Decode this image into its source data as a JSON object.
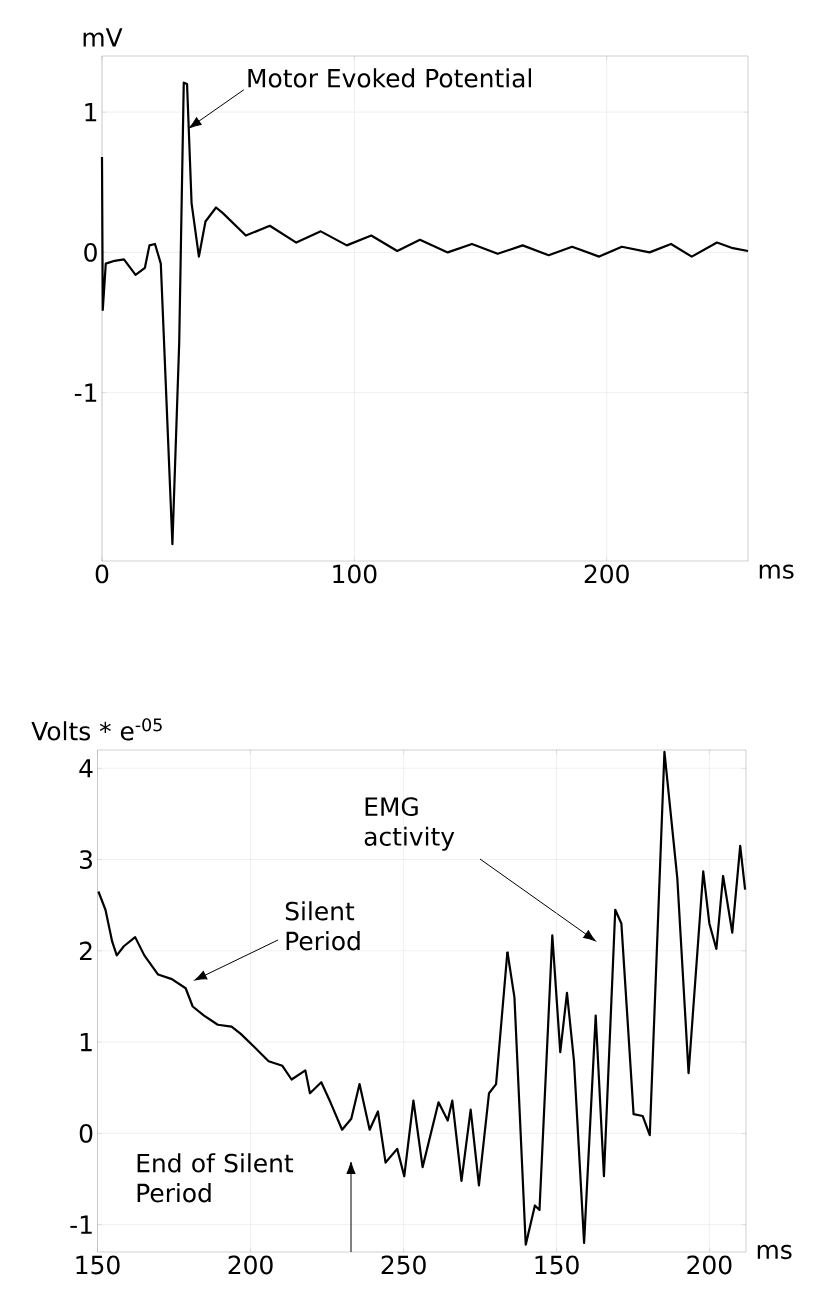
{
  "chart_data": [
    {
      "type": "line",
      "xlabel": "ms",
      "ylabel": "mV",
      "color": "#000000",
      "grid": true,
      "xlim": [
        0,
        256
      ],
      "ylim": [
        -2.2,
        1.4
      ],
      "xticks": [
        0,
        100,
        200
      ],
      "yticks": [
        -1,
        0,
        1
      ],
      "x": [
        0,
        0.3,
        1.5,
        5,
        8.7,
        13.3,
        17,
        18.8,
        21,
        23.3,
        27.9,
        30.6,
        32.4,
        33.7,
        35.5,
        38.4,
        41,
        45.2,
        47.9,
        57,
        66.5,
        77,
        86.7,
        97,
        106.7,
        117,
        126,
        137,
        146.6,
        156.8,
        166.7,
        177,
        186.3,
        197,
        206,
        217,
        225.5,
        233.7,
        243.7,
        250,
        256
      ],
      "values": [
        0.68,
        -0.41,
        -0.08,
        -0.06,
        -0.05,
        -0.16,
        -0.11,
        0.05,
        0.06,
        -0.08,
        -2.08,
        -0.64,
        1.21,
        1.2,
        0.35,
        -0.03,
        0.22,
        0.32,
        0.28,
        0.12,
        0.19,
        0.07,
        0.15,
        0.05,
        0.12,
        0.01,
        0.09,
        0,
        0.06,
        -0.01,
        0.05,
        -0.02,
        0.04,
        -0.03,
        0.04,
        0,
        0.06,
        -0.03,
        0.07,
        0.03,
        0.01
      ],
      "annotations": [
        {
          "text": "Motor Evoked Potential",
          "x": 34,
          "y": 0.88
        }
      ]
    },
    {
      "type": "line",
      "ylabel": "Volts * e$^{-05}$",
      "color": "#000000",
      "grid": true,
      "xlim": [
        150,
        283.9
      ],
      "ylim": [
        -1.3,
        4.2
      ],
      "xticks": [
        150,
        200,
        250
      ],
      "yticks": [
        -1,
        0,
        1,
        2,
        3,
        4
      ],
      "x": [
        150.3,
        152.6,
        154.8,
        156.3,
        158.6,
        162.3,
        165.3,
        169.8,
        174.3,
        178.8,
        181.1,
        184.8,
        189.3,
        193.8,
        196.8,
        201.4,
        205.9,
        210.4,
        213.4,
        217.9,
        219.4,
        223.1,
        226.1,
        229.9,
        232.9,
        235.6,
        238.9,
        241.6,
        244.1,
        247.9,
        250.2,
        253.2,
        256.2,
        261.4,
        264.4,
        265.9,
        268.9,
        271.9,
        274.6,
        277.9,
        280.2,
        283.9
      ],
      "values": [
        2.65,
        2.45,
        2.1,
        1.95,
        2.05,
        2.15,
        1.95,
        1.74,
        1.69,
        1.59,
        1.39,
        1.29,
        1.19,
        1.17,
        1.09,
        0.94,
        0.79,
        0.74,
        0.59,
        0.69,
        0.44,
        0.56,
        0.34,
        0.04,
        0.16,
        0.54,
        0.04,
        0.24,
        -0.32,
        -0.17,
        -0.47,
        0.36,
        -0.37,
        0.34,
        0.14,
        0.36,
        -0.52,
        0.26,
        -0.57,
        0.44,
        0.54,
        1.99
      ],
      "annotations": [
        "EMG activity",
        "Silent Period",
        "End of Silent Period"
      ]
    },
    {
      "type": "line",
      "xlabel": "ms",
      "color": "#000000",
      "grid": true,
      "tick_labels": "x",
      "xlim": [
        133.9,
        212
      ],
      "ylim": [
        -1.3,
        4.2
      ],
      "xticks": [
        150,
        200
      ],
      "yticks": [
        -1,
        0,
        1,
        2,
        3,
        4
      ],
      "x": [
        133.9,
        136.2,
        139.9,
        142.9,
        144.4,
        148.6,
        151.2,
        153.4,
        155.7,
        159.0,
        162.8,
        165.5,
        169.2,
        171.2,
        175.2,
        178.2,
        180.5,
        185.3,
        189.5,
        193.2,
        198.0,
        200.0,
        202.3,
        204.5,
        207.5,
        210.1,
        211.7
      ],
      "values": [
        1.99,
        1.49,
        -1.22,
        -0.79,
        -0.84,
        2.17,
        0.89,
        1.54,
        0.79,
        -1.2,
        1.29,
        -0.47,
        2.45,
        2.3,
        0.21,
        0.19,
        -0.02,
        4.18,
        2.8,
        0.66,
        2.87,
        2.3,
        2.02,
        2.82,
        2.2,
        3.15,
        2.67
      ]
    }
  ]
}
